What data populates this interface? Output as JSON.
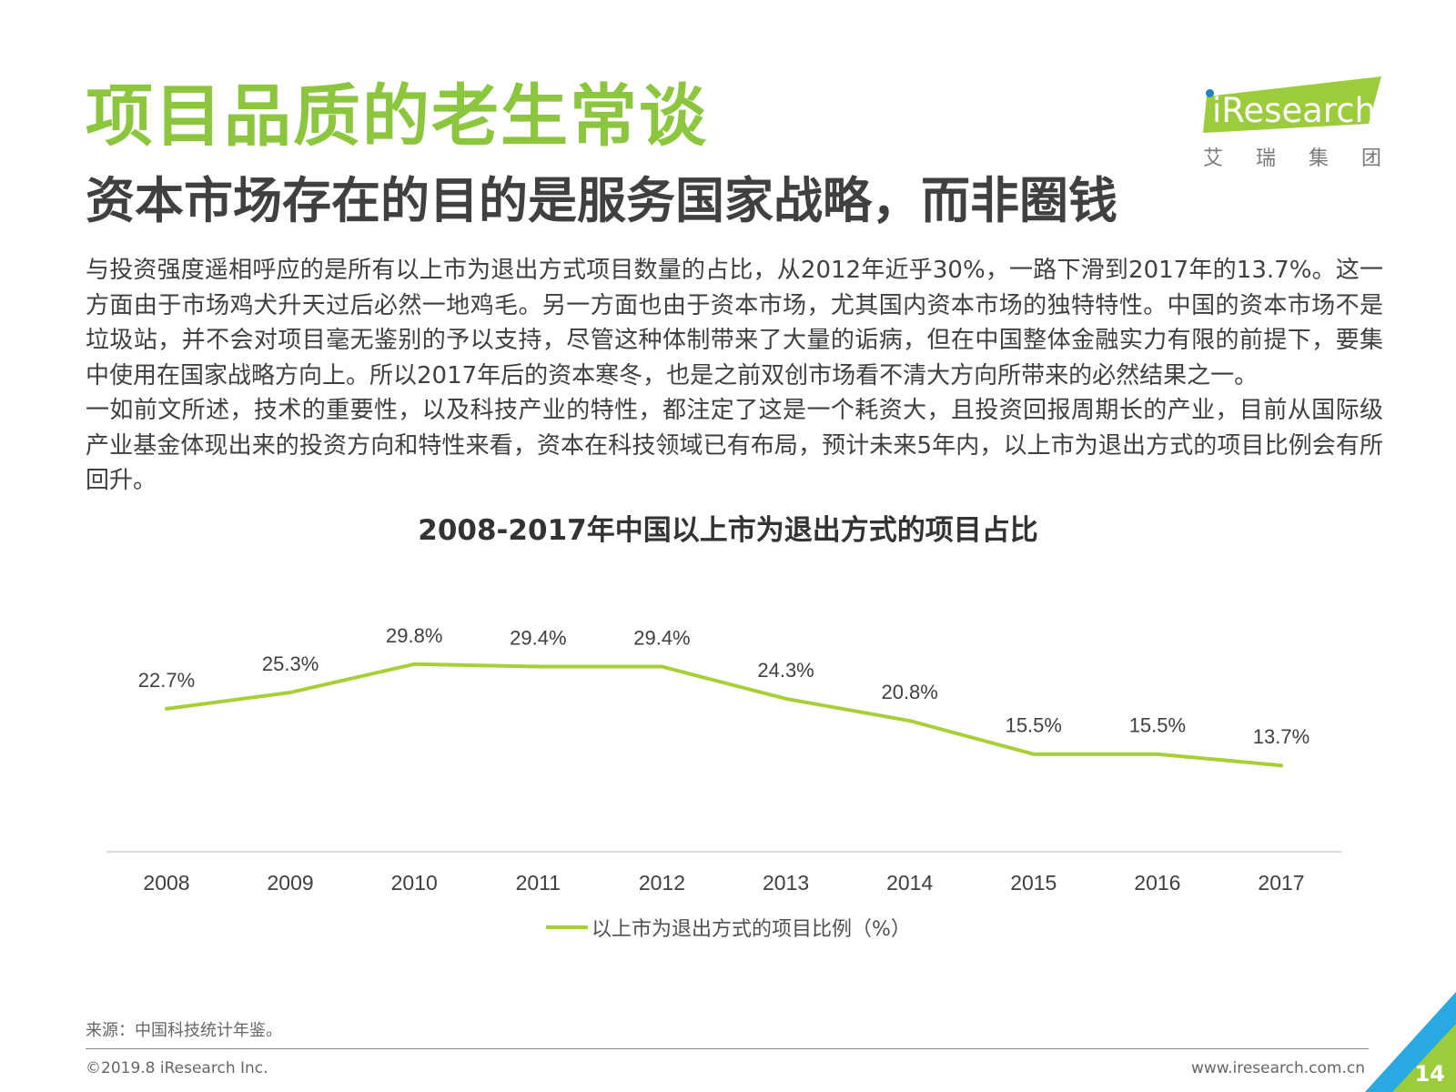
{
  "header": {
    "title": "项目品质的老生常谈",
    "subtitle": "资本市场存在的目的是服务国家战略，而非圈钱"
  },
  "logo": {
    "wordmark": "iResearch",
    "chinese": [
      "艾",
      "瑞",
      "集",
      "团"
    ]
  },
  "body": {
    "paragraph_1": "与投资强度遥相呼应的是所有以上市为退出方式项目数量的占比，从2012年近乎30%，一路下滑到2017年的13.7%。这一方面由于市场鸡犬升天过后必然一地鸡毛。另一方面也由于资本市场，尤其国内资本市场的独特特性。中国的资本市场不是垃圾站，并不会对项目毫无鉴别的予以支持，尽管这种体制带来了大量的诟病，但在中国整体金融实力有限的前提下，要集中使用在国家战略方向上。所以2017年后的资本寒冬，也是之前双创市场看不清大方向所带来的必然结果之一。",
    "paragraph_2": "一如前文所述，技术的重要性，以及科技产业的特性，都注定了这是一个耗资大，且投资回报周期长的产业，目前从国际级产业基金体现出来的投资方向和特性来看，资本在科技领域已有布局，预计未来5年内，以上市为退出方式的项目比例会有所回升。"
  },
  "chart_data": {
    "type": "line",
    "title": "2008-2017年中国以上市为退出方式的项目占比",
    "categories": [
      "2008",
      "2009",
      "2010",
      "2011",
      "2012",
      "2013",
      "2014",
      "2015",
      "2016",
      "2017"
    ],
    "series": [
      {
        "name": "以上市为退出方式的项目比例（%）",
        "values": [
          22.7,
          25.3,
          29.8,
          29.4,
          29.4,
          24.3,
          20.8,
          15.5,
          15.5,
          13.7
        ],
        "labels": [
          "22.7%",
          "25.3%",
          "29.8%",
          "29.4%",
          "29.4%",
          "24.3%",
          "20.8%",
          "15.5%",
          "15.5%",
          "13.7%"
        ],
        "color": "#a8cf38"
      }
    ],
    "ylim": [
      0,
      35
    ],
    "grid": false,
    "legend": "bottom-center"
  },
  "footer": {
    "source": "来源：中国科技统计年鉴。",
    "copyright": "©2019.8 iResearch Inc.",
    "website": "www.iresearch.com.cn",
    "page_number": "14"
  },
  "colors": {
    "accent_green": "#8cc63f",
    "line_green": "#a8cf38",
    "corner_blue": "#29a9e1",
    "text": "#404040"
  }
}
